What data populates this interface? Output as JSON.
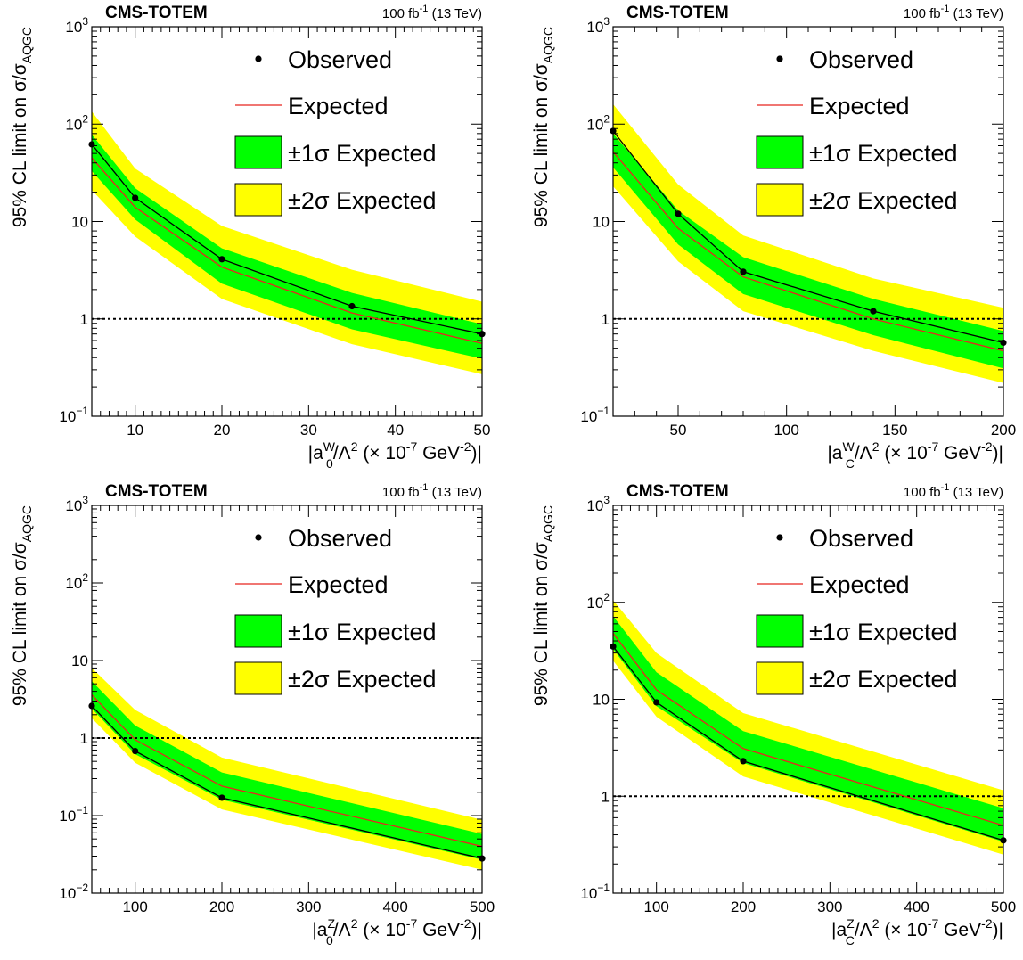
{
  "chart_data": [
    {
      "type": "line",
      "experiment_label": "CMS-TOTEM",
      "lumi_label": {
        "value": "100 fb",
        "sup": "-1",
        "energy": "(13 TeV)"
      },
      "ylabel": {
        "prefix": "95% CL limit on σ/σ",
        "sub": "AQGC"
      },
      "xlabel": {
        "pre": "|a",
        "sup": "W",
        "sub": "0",
        "mid": "/Λ",
        "sup2": "2",
        "post1": " (× 10",
        "sup3": "-7",
        "post2": " GeV",
        "sup4": "-2",
        "post3": ")|"
      },
      "xlim": [
        5,
        50
      ],
      "ylim": [
        0.1,
        1000
      ],
      "yscale": "log",
      "xticks": [
        10,
        20,
        30,
        40,
        50
      ],
      "xtick_labels": [
        "10",
        "20",
        "30",
        "40",
        "50"
      ],
      "yticks": [
        0.1,
        1,
        10,
        100,
        1000
      ],
      "ytick_labels": [
        {
          "base": "10",
          "exp": "−1"
        },
        {
          "base": "1",
          "exp": ""
        },
        {
          "base": "10",
          "exp": ""
        },
        {
          "base": "10",
          "exp": "2"
        },
        {
          "base": "10",
          "exp": "3"
        }
      ],
      "reference_line": 1,
      "x": [
        5,
        10,
        20,
        35,
        50
      ],
      "observed": [
        62,
        17.5,
        4.1,
        1.35,
        0.7
      ],
      "expected": [
        45,
        14,
        3.4,
        1.15,
        0.56
      ],
      "band_1sigma": {
        "low": [
          33,
          10.5,
          2.3,
          0.78,
          0.39
        ],
        "high": [
          78,
          22,
          5.3,
          1.85,
          0.88
        ]
      },
      "band_2sigma": {
        "low": [
          21,
          7,
          1.6,
          0.55,
          0.27
        ],
        "high": [
          135,
          35,
          9,
          3.2,
          1.5
        ]
      }
    },
    {
      "type": "line",
      "experiment_label": "CMS-TOTEM",
      "lumi_label": {
        "value": "100 fb",
        "sup": "-1",
        "energy": "(13 TeV)"
      },
      "ylabel": {
        "prefix": "95% CL limit on σ/σ",
        "sub": "AQGC"
      },
      "xlabel": {
        "pre": "|a",
        "sup": "W",
        "sub": "C",
        "mid": "/Λ",
        "sup2": "2",
        "post1": " (× 10",
        "sup3": "-7",
        "post2": " GeV",
        "sup4": "-2",
        "post3": ")|"
      },
      "xlim": [
        20,
        200
      ],
      "ylim": [
        0.1,
        1000
      ],
      "yscale": "log",
      "xticks": [
        50,
        100,
        150,
        200
      ],
      "xtick_labels": [
        "50",
        "100",
        "150",
        "200"
      ],
      "yticks": [
        0.1,
        1,
        10,
        100,
        1000
      ],
      "ytick_labels": [
        {
          "base": "10",
          "exp": "−1"
        },
        {
          "base": "1",
          "exp": ""
        },
        {
          "base": "10",
          "exp": ""
        },
        {
          "base": "10",
          "exp": "2"
        },
        {
          "base": "10",
          "exp": "3"
        }
      ],
      "reference_line": 1,
      "x": [
        20,
        50,
        80,
        140,
        200
      ],
      "observed": [
        85,
        12,
        3.05,
        1.2,
        0.57
      ],
      "expected": [
        52,
        8.5,
        2.7,
        1.0,
        0.47
      ],
      "band_1sigma": {
        "low": [
          36,
          5.8,
          1.8,
          0.68,
          0.31
        ],
        "high": [
          80,
          13,
          4.3,
          1.6,
          0.75
        ]
      },
      "band_2sigma": {
        "low": [
          23,
          3.9,
          1.2,
          0.47,
          0.22
        ],
        "high": [
          160,
          24,
          7.2,
          2.6,
          1.3
        ]
      }
    },
    {
      "type": "line",
      "experiment_label": "CMS-TOTEM",
      "lumi_label": {
        "value": "100 fb",
        "sup": "-1",
        "energy": "(13 TeV)"
      },
      "ylabel": {
        "prefix": "95% CL limit on σ/σ",
        "sub": "AQGC"
      },
      "xlabel": {
        "pre": "|a",
        "sup": "Z",
        "sub": "0",
        "mid": "/Λ",
        "sup2": "2",
        "post1": " (× 10",
        "sup3": "-7",
        "post2": " GeV",
        "sup4": "-2",
        "post3": ")|"
      },
      "xlim": [
        50,
        500
      ],
      "ylim": [
        0.01,
        1000
      ],
      "yscale": "log",
      "xticks": [
        100,
        200,
        300,
        400,
        500
      ],
      "xtick_labels": [
        "100",
        "200",
        "300",
        "400",
        "500"
      ],
      "yticks": [
        0.01,
        0.1,
        1,
        10,
        100,
        1000
      ],
      "ytick_labels": [
        {
          "base": "10",
          "exp": "−2"
        },
        {
          "base": "10",
          "exp": "−1"
        },
        {
          "base": "1",
          "exp": ""
        },
        {
          "base": "10",
          "exp": ""
        },
        {
          "base": "10",
          "exp": "2"
        },
        {
          "base": "10",
          "exp": "3"
        }
      ],
      "reference_line": 1,
      "x": [
        50,
        100,
        200,
        500
      ],
      "observed": [
        2.6,
        0.68,
        0.17,
        0.028
      ],
      "expected": [
        3.6,
        0.95,
        0.24,
        0.04
      ],
      "band_1sigma": {
        "low": [
          2.4,
          0.62,
          0.16,
          0.027
        ],
        "high": [
          5.4,
          1.45,
          0.36,
          0.058
        ]
      },
      "band_2sigma": {
        "low": [
          1.8,
          0.48,
          0.12,
          0.02
        ],
        "high": [
          8,
          2.3,
          0.56,
          0.088
        ]
      }
    },
    {
      "type": "line",
      "experiment_label": "CMS-TOTEM",
      "lumi_label": {
        "value": "100 fb",
        "sup": "-1",
        "energy": "(13 TeV)"
      },
      "ylabel": {
        "prefix": "95% CL limit on σ/σ",
        "sub": "AQGC"
      },
      "xlabel": {
        "pre": "|a",
        "sup": "Z",
        "sub": "C",
        "mid": "/Λ",
        "sup2": "2",
        "post1": " (× 10",
        "sup3": "-7",
        "post2": " GeV",
        "sup4": "-2",
        "post3": ")|"
      },
      "xlim": [
        50,
        500
      ],
      "ylim": [
        0.1,
        1000
      ],
      "yscale": "log",
      "xticks": [
        100,
        200,
        300,
        400,
        500
      ],
      "xtick_labels": [
        "100",
        "200",
        "300",
        "400",
        "500"
      ],
      "yticks": [
        0.1,
        1,
        10,
        100,
        1000
      ],
      "ytick_labels": [
        {
          "base": "10",
          "exp": "−1"
        },
        {
          "base": "1",
          "exp": ""
        },
        {
          "base": "10",
          "exp": ""
        },
        {
          "base": "10",
          "exp": "2"
        },
        {
          "base": "10",
          "exp": "3"
        }
      ],
      "reference_line": 1,
      "x": [
        50,
        100,
        200,
        500
      ],
      "observed": [
        35,
        9.3,
        2.3,
        0.35
      ],
      "expected": [
        48,
        12.5,
        3.1,
        0.5
      ],
      "band_1sigma": {
        "low": [
          33,
          8.5,
          2.2,
          0.34
        ],
        "high": [
          72,
          19,
          4.7,
          0.75
        ]
      },
      "band_2sigma": {
        "low": [
          25,
          6.6,
          1.6,
          0.25
        ],
        "high": [
          105,
          30,
          7.2,
          1.15
        ]
      }
    }
  ],
  "legend": {
    "observed": "Observed",
    "expected": "Expected",
    "sigma1": "±1σ Expected",
    "sigma2": "±2σ Expected"
  },
  "colors": {
    "band_1sigma": "#00ff00",
    "band_2sigma": "#ffff00",
    "expected_line": "#e8251f",
    "observed": "#000000"
  }
}
